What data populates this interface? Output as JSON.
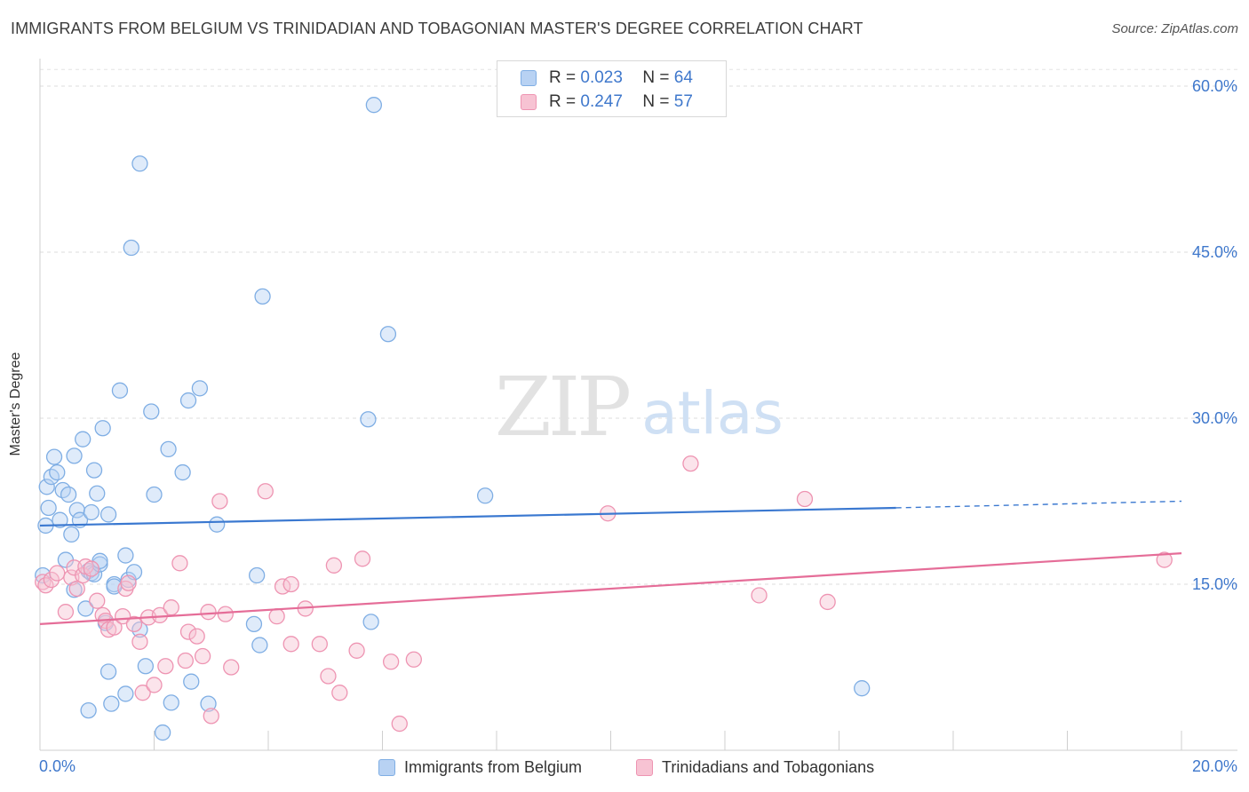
{
  "header": {
    "title": "IMMIGRANTS FROM BELGIUM VS TRINIDADIAN AND TOBAGONIAN MASTER'S DEGREE CORRELATION CHART",
    "source": "Source: ZipAtlas.com"
  },
  "watermark": {
    "zip": "ZIP",
    "atlas": "atlas"
  },
  "legend": {
    "series1": {
      "r_label": "R =",
      "r_value": "0.023",
      "n_label": "N =",
      "n_value": "64"
    },
    "series2": {
      "r_label": "R =",
      "r_value": "0.247",
      "n_label": "N =",
      "n_value": "57"
    }
  },
  "colors": {
    "blue_fill": "#b8d2f3",
    "blue_stroke": "#7faee4",
    "blue_line": "#3a78d0",
    "pink_fill": "#f7c3d3",
    "pink_stroke": "#ee94b2",
    "pink_line": "#e56d98",
    "axis_blue": "#3f78cc"
  },
  "chart_data": {
    "type": "scatter",
    "title": "IMMIGRANTS FROM BELGIUM VS TRINIDADIAN AND TOBAGONIAN MASTER'S DEGREE CORRELATION CHART",
    "xlabel": "",
    "ylabel": "Master's Degree",
    "xlim": [
      0,
      20
    ],
    "ylim": [
      0,
      62
    ],
    "x_tick_labels": [
      "0.0%",
      "20.0%"
    ],
    "y_ticks": [
      15,
      30,
      45,
      60
    ],
    "y_tick_labels": [
      "15.0%",
      "30.0%",
      "45.0%",
      "60.0%"
    ],
    "legend_position": "top-center",
    "series": [
      {
        "name": "Immigrants from Belgium",
        "color": "#7faee4",
        "trend": {
          "x0": 0,
          "y0": 20.3,
          "x1": 15.0,
          "y1": 21.9,
          "dash_to_x": 20,
          "dash_to_y": 22.5
        },
        "points": [
          [
            0.05,
            15.8
          ],
          [
            0.1,
            20.3
          ],
          [
            0.12,
            23.8
          ],
          [
            0.15,
            21.9
          ],
          [
            0.2,
            24.7
          ],
          [
            0.25,
            26.5
          ],
          [
            0.3,
            25.1
          ],
          [
            0.35,
            20.8
          ],
          [
            0.4,
            23.5
          ],
          [
            0.45,
            17.2
          ],
          [
            0.5,
            23.1
          ],
          [
            0.55,
            19.5
          ],
          [
            0.6,
            26.6
          ],
          [
            0.6,
            14.5
          ],
          [
            0.65,
            21.7
          ],
          [
            0.7,
            20.8
          ],
          [
            0.75,
            28.1
          ],
          [
            0.8,
            12.8
          ],
          [
            0.85,
            3.6
          ],
          [
            0.85,
            16.2
          ],
          [
            0.9,
            21.5
          ],
          [
            0.9,
            16.0
          ],
          [
            0.95,
            25.3
          ],
          [
            0.95,
            15.9
          ],
          [
            1.0,
            23.2
          ],
          [
            1.05,
            16.8
          ],
          [
            1.05,
            17.1
          ],
          [
            1.1,
            29.1
          ],
          [
            1.15,
            11.5
          ],
          [
            1.2,
            21.3
          ],
          [
            1.2,
            7.1
          ],
          [
            1.25,
            4.2
          ],
          [
            1.3,
            15.0
          ],
          [
            1.3,
            14.8
          ],
          [
            1.4,
            32.5
          ],
          [
            1.5,
            17.6
          ],
          [
            1.5,
            5.1
          ],
          [
            1.55,
            15.4
          ],
          [
            1.6,
            45.4
          ],
          [
            1.65,
            16.1
          ],
          [
            1.75,
            53.0
          ],
          [
            1.75,
            10.9
          ],
          [
            1.85,
            7.6
          ],
          [
            1.95,
            30.6
          ],
          [
            2.0,
            23.1
          ],
          [
            2.15,
            1.6
          ],
          [
            2.25,
            27.2
          ],
          [
            2.3,
            4.3
          ],
          [
            2.5,
            25.1
          ],
          [
            2.6,
            31.6
          ],
          [
            2.65,
            6.2
          ],
          [
            2.8,
            32.7
          ],
          [
            2.95,
            4.2
          ],
          [
            3.1,
            20.4
          ],
          [
            3.75,
            11.4
          ],
          [
            3.8,
            15.8
          ],
          [
            3.85,
            9.5
          ],
          [
            3.9,
            41.0
          ],
          [
            5.85,
            58.3
          ],
          [
            5.75,
            29.9
          ],
          [
            5.8,
            11.6
          ],
          [
            6.1,
            37.6
          ],
          [
            7.8,
            23.0
          ],
          [
            14.4,
            5.6
          ]
        ]
      },
      {
        "name": "Trinidadians and Tobagonians",
        "color": "#ee94b2",
        "trend": {
          "x0": 0,
          "y0": 11.4,
          "x1": 20,
          "y1": 17.8
        },
        "points": [
          [
            0.05,
            15.2
          ],
          [
            0.1,
            14.9
          ],
          [
            0.2,
            15.4
          ],
          [
            0.3,
            16.0
          ],
          [
            0.45,
            12.5
          ],
          [
            0.55,
            15.6
          ],
          [
            0.6,
            16.5
          ],
          [
            0.65,
            14.6
          ],
          [
            0.75,
            15.8
          ],
          [
            0.8,
            16.6
          ],
          [
            0.9,
            16.4
          ],
          [
            1.0,
            13.5
          ],
          [
            1.1,
            12.2
          ],
          [
            1.15,
            11.7
          ],
          [
            1.2,
            10.9
          ],
          [
            1.3,
            11.1
          ],
          [
            1.45,
            12.1
          ],
          [
            1.5,
            14.6
          ],
          [
            1.55,
            15.1
          ],
          [
            1.65,
            11.4
          ],
          [
            1.75,
            9.8
          ],
          [
            1.8,
            5.2
          ],
          [
            1.9,
            12.0
          ],
          [
            2.0,
            5.9
          ],
          [
            2.1,
            12.2
          ],
          [
            2.3,
            12.9
          ],
          [
            2.2,
            7.6
          ],
          [
            2.45,
            16.9
          ],
          [
            2.55,
            8.1
          ],
          [
            2.6,
            10.7
          ],
          [
            2.75,
            10.3
          ],
          [
            2.85,
            8.5
          ],
          [
            2.95,
            12.5
          ],
          [
            3.0,
            3.1
          ],
          [
            3.15,
            22.5
          ],
          [
            3.25,
            12.3
          ],
          [
            3.35,
            7.5
          ],
          [
            3.95,
            23.4
          ],
          [
            4.15,
            12.1
          ],
          [
            4.25,
            14.8
          ],
          [
            4.4,
            15.0
          ],
          [
            4.4,
            9.6
          ],
          [
            4.65,
            12.8
          ],
          [
            4.9,
            9.6
          ],
          [
            5.05,
            6.7
          ],
          [
            5.15,
            16.7
          ],
          [
            5.25,
            5.2
          ],
          [
            5.55,
            9.0
          ],
          [
            5.65,
            17.3
          ],
          [
            6.15,
            8.0
          ],
          [
            6.3,
            2.4
          ],
          [
            6.55,
            8.2
          ],
          [
            9.95,
            21.4
          ],
          [
            11.4,
            25.9
          ],
          [
            12.6,
            14.0
          ],
          [
            13.4,
            22.7
          ],
          [
            13.8,
            13.4
          ],
          [
            19.7,
            17.2
          ]
        ]
      }
    ]
  }
}
